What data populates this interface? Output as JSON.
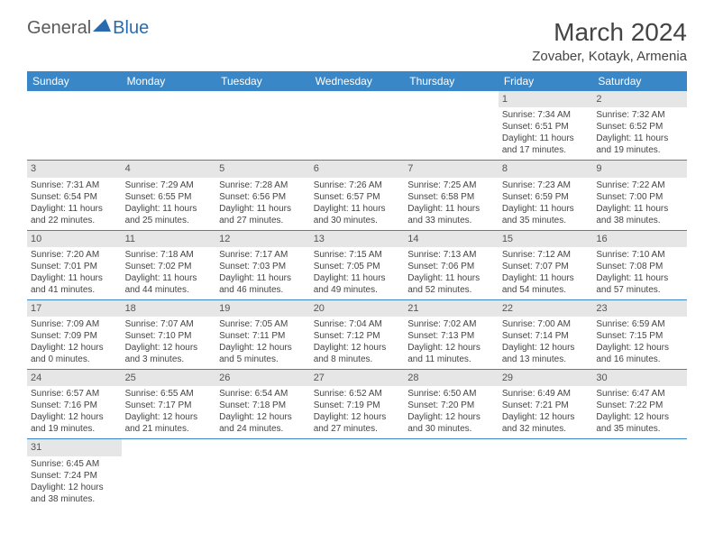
{
  "logo": {
    "general": "General",
    "blue": "Blue"
  },
  "title": "March 2024",
  "location": "Zovaber, Kotayk, Armenia",
  "colors": {
    "header_bg": "#3a87c8",
    "header_text": "#ffffff",
    "daynum_bg": "#e6e6e6",
    "daynum_text": "#555555",
    "body_text": "#444444",
    "row_border": "#3a87c8",
    "logo_gray": "#5a5a5a",
    "logo_blue": "#2a6bb0"
  },
  "day_headers": [
    "Sunday",
    "Monday",
    "Tuesday",
    "Wednesday",
    "Thursday",
    "Friday",
    "Saturday"
  ],
  "weeks": [
    [
      {
        "n": "",
        "sr": "",
        "ss": "",
        "dl": ""
      },
      {
        "n": "",
        "sr": "",
        "ss": "",
        "dl": ""
      },
      {
        "n": "",
        "sr": "",
        "ss": "",
        "dl": ""
      },
      {
        "n": "",
        "sr": "",
        "ss": "",
        "dl": ""
      },
      {
        "n": "",
        "sr": "",
        "ss": "",
        "dl": ""
      },
      {
        "n": "1",
        "sr": "Sunrise: 7:34 AM",
        "ss": "Sunset: 6:51 PM",
        "dl": "Daylight: 11 hours and 17 minutes."
      },
      {
        "n": "2",
        "sr": "Sunrise: 7:32 AM",
        "ss": "Sunset: 6:52 PM",
        "dl": "Daylight: 11 hours and 19 minutes."
      }
    ],
    [
      {
        "n": "3",
        "sr": "Sunrise: 7:31 AM",
        "ss": "Sunset: 6:54 PM",
        "dl": "Daylight: 11 hours and 22 minutes."
      },
      {
        "n": "4",
        "sr": "Sunrise: 7:29 AM",
        "ss": "Sunset: 6:55 PM",
        "dl": "Daylight: 11 hours and 25 minutes."
      },
      {
        "n": "5",
        "sr": "Sunrise: 7:28 AM",
        "ss": "Sunset: 6:56 PM",
        "dl": "Daylight: 11 hours and 27 minutes."
      },
      {
        "n": "6",
        "sr": "Sunrise: 7:26 AM",
        "ss": "Sunset: 6:57 PM",
        "dl": "Daylight: 11 hours and 30 minutes."
      },
      {
        "n": "7",
        "sr": "Sunrise: 7:25 AM",
        "ss": "Sunset: 6:58 PM",
        "dl": "Daylight: 11 hours and 33 minutes."
      },
      {
        "n": "8",
        "sr": "Sunrise: 7:23 AM",
        "ss": "Sunset: 6:59 PM",
        "dl": "Daylight: 11 hours and 35 minutes."
      },
      {
        "n": "9",
        "sr": "Sunrise: 7:22 AM",
        "ss": "Sunset: 7:00 PM",
        "dl": "Daylight: 11 hours and 38 minutes."
      }
    ],
    [
      {
        "n": "10",
        "sr": "Sunrise: 7:20 AM",
        "ss": "Sunset: 7:01 PM",
        "dl": "Daylight: 11 hours and 41 minutes."
      },
      {
        "n": "11",
        "sr": "Sunrise: 7:18 AM",
        "ss": "Sunset: 7:02 PM",
        "dl": "Daylight: 11 hours and 44 minutes."
      },
      {
        "n": "12",
        "sr": "Sunrise: 7:17 AM",
        "ss": "Sunset: 7:03 PM",
        "dl": "Daylight: 11 hours and 46 minutes."
      },
      {
        "n": "13",
        "sr": "Sunrise: 7:15 AM",
        "ss": "Sunset: 7:05 PM",
        "dl": "Daylight: 11 hours and 49 minutes."
      },
      {
        "n": "14",
        "sr": "Sunrise: 7:13 AM",
        "ss": "Sunset: 7:06 PM",
        "dl": "Daylight: 11 hours and 52 minutes."
      },
      {
        "n": "15",
        "sr": "Sunrise: 7:12 AM",
        "ss": "Sunset: 7:07 PM",
        "dl": "Daylight: 11 hours and 54 minutes."
      },
      {
        "n": "16",
        "sr": "Sunrise: 7:10 AM",
        "ss": "Sunset: 7:08 PM",
        "dl": "Daylight: 11 hours and 57 minutes."
      }
    ],
    [
      {
        "n": "17",
        "sr": "Sunrise: 7:09 AM",
        "ss": "Sunset: 7:09 PM",
        "dl": "Daylight: 12 hours and 0 minutes."
      },
      {
        "n": "18",
        "sr": "Sunrise: 7:07 AM",
        "ss": "Sunset: 7:10 PM",
        "dl": "Daylight: 12 hours and 3 minutes."
      },
      {
        "n": "19",
        "sr": "Sunrise: 7:05 AM",
        "ss": "Sunset: 7:11 PM",
        "dl": "Daylight: 12 hours and 5 minutes."
      },
      {
        "n": "20",
        "sr": "Sunrise: 7:04 AM",
        "ss": "Sunset: 7:12 PM",
        "dl": "Daylight: 12 hours and 8 minutes."
      },
      {
        "n": "21",
        "sr": "Sunrise: 7:02 AM",
        "ss": "Sunset: 7:13 PM",
        "dl": "Daylight: 12 hours and 11 minutes."
      },
      {
        "n": "22",
        "sr": "Sunrise: 7:00 AM",
        "ss": "Sunset: 7:14 PM",
        "dl": "Daylight: 12 hours and 13 minutes."
      },
      {
        "n": "23",
        "sr": "Sunrise: 6:59 AM",
        "ss": "Sunset: 7:15 PM",
        "dl": "Daylight: 12 hours and 16 minutes."
      }
    ],
    [
      {
        "n": "24",
        "sr": "Sunrise: 6:57 AM",
        "ss": "Sunset: 7:16 PM",
        "dl": "Daylight: 12 hours and 19 minutes."
      },
      {
        "n": "25",
        "sr": "Sunrise: 6:55 AM",
        "ss": "Sunset: 7:17 PM",
        "dl": "Daylight: 12 hours and 21 minutes."
      },
      {
        "n": "26",
        "sr": "Sunrise: 6:54 AM",
        "ss": "Sunset: 7:18 PM",
        "dl": "Daylight: 12 hours and 24 minutes."
      },
      {
        "n": "27",
        "sr": "Sunrise: 6:52 AM",
        "ss": "Sunset: 7:19 PM",
        "dl": "Daylight: 12 hours and 27 minutes."
      },
      {
        "n": "28",
        "sr": "Sunrise: 6:50 AM",
        "ss": "Sunset: 7:20 PM",
        "dl": "Daylight: 12 hours and 30 minutes."
      },
      {
        "n": "29",
        "sr": "Sunrise: 6:49 AM",
        "ss": "Sunset: 7:21 PM",
        "dl": "Daylight: 12 hours and 32 minutes."
      },
      {
        "n": "30",
        "sr": "Sunrise: 6:47 AM",
        "ss": "Sunset: 7:22 PM",
        "dl": "Daylight: 12 hours and 35 minutes."
      }
    ],
    [
      {
        "n": "31",
        "sr": "Sunrise: 6:45 AM",
        "ss": "Sunset: 7:24 PM",
        "dl": "Daylight: 12 hours and 38 minutes."
      },
      {
        "n": "",
        "sr": "",
        "ss": "",
        "dl": ""
      },
      {
        "n": "",
        "sr": "",
        "ss": "",
        "dl": ""
      },
      {
        "n": "",
        "sr": "",
        "ss": "",
        "dl": ""
      },
      {
        "n": "",
        "sr": "",
        "ss": "",
        "dl": ""
      },
      {
        "n": "",
        "sr": "",
        "ss": "",
        "dl": ""
      },
      {
        "n": "",
        "sr": "",
        "ss": "",
        "dl": ""
      }
    ]
  ]
}
